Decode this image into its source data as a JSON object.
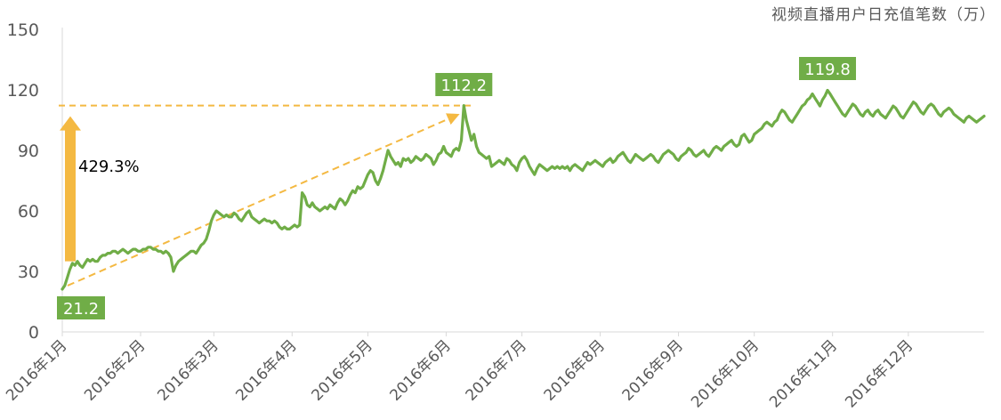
{
  "chart_data": {
    "type": "line",
    "unit_title": "视频直播用户日充值笔数（万）",
    "y_ticks": [
      0,
      30,
      60,
      90,
      120,
      150
    ],
    "ylim": [
      0,
      150
    ],
    "x_tick_labels": [
      "2016年1月",
      "2016年2月",
      "2016年3月",
      "2016年4月",
      "2016年5月",
      "2016年6月",
      "2016年7月",
      "2016年8月",
      "2016年9月",
      "2016年10月",
      "2016年11月",
      "2016年12月"
    ],
    "grid": false,
    "colors": {
      "line": "#70AD47",
      "label_bg": "#70AD47",
      "arrow": "#F4B942",
      "axis": "#D9D9D9",
      "text": "#595959"
    },
    "series": [
      {
        "x_start": "2016-01-01",
        "x_end": "2016-12-31",
        "values": [
          21.2,
          23,
          27,
          31,
          34,
          33,
          35,
          33,
          32,
          34,
          36,
          35,
          36,
          35,
          35,
          37,
          38,
          38,
          39,
          39,
          40,
          40,
          39,
          40,
          41,
          40,
          39,
          40,
          41,
          41,
          40,
          40,
          41,
          41,
          42,
          42,
          41,
          41,
          40,
          40,
          39,
          40,
          39,
          37,
          30,
          33,
          35,
          36,
          37,
          38,
          39,
          40,
          40,
          39,
          41,
          43,
          44,
          46,
          50,
          55,
          58,
          60,
          59,
          58,
          57,
          58,
          57,
          57,
          59,
          58,
          56,
          55,
          57,
          59,
          60,
          57,
          56,
          55,
          54,
          55,
          56,
          55,
          55,
          54,
          55,
          54,
          52,
          51,
          52,
          51,
          51,
          52,
          53,
          52,
          53,
          69,
          67,
          63,
          62,
          64,
          62,
          61,
          60,
          61,
          62,
          61,
          63,
          62,
          61,
          64,
          66,
          65,
          63,
          65,
          68,
          70,
          69,
          72,
          71,
          72,
          75,
          78,
          80,
          79,
          75,
          73,
          76,
          80,
          85,
          90,
          87,
          85,
          83,
          84,
          82,
          86,
          85,
          86,
          84,
          85,
          87,
          86,
          85,
          86,
          88,
          87,
          86,
          83,
          85,
          88,
          89,
          92,
          89,
          88,
          87,
          90,
          91,
          90,
          95,
          112.2,
          105,
          100,
          95,
          98,
          92,
          89,
          88,
          87,
          86,
          87,
          82,
          83,
          84,
          85,
          84,
          83,
          86,
          85,
          83,
          82,
          80,
          84,
          86,
          87,
          85,
          82,
          80,
          78,
          81,
          83,
          82,
          81,
          80,
          81,
          82,
          81,
          82,
          81,
          82,
          81,
          82,
          80,
          82,
          83,
          82,
          81,
          80,
          82,
          84,
          83,
          84,
          85,
          84,
          83,
          82,
          84,
          85,
          86,
          84,
          85,
          87,
          88,
          89,
          87,
          85,
          84,
          86,
          88,
          87,
          86,
          85,
          86,
          87,
          88,
          87,
          85,
          84,
          86,
          88,
          89,
          90,
          89,
          88,
          86,
          85,
          87,
          88,
          89,
          91,
          90,
          88,
          87,
          88,
          89,
          90,
          88,
          87,
          89,
          91,
          92,
          91,
          90,
          92,
          93,
          94,
          95,
          93,
          92,
          93,
          97,
          98,
          96,
          94,
          95,
          98,
          99,
          100,
          101,
          103,
          104,
          103,
          102,
          104,
          105,
          108,
          110,
          109,
          107,
          105,
          104,
          106,
          108,
          110,
          112,
          113,
          115,
          116,
          118,
          116,
          114,
          112,
          115,
          117,
          119.8,
          118,
          116,
          114,
          112,
          110,
          108,
          107,
          109,
          111,
          113,
          112,
          110,
          108,
          107,
          109,
          110,
          108,
          107,
          109,
          110,
          108,
          107,
          106,
          108,
          110,
          112,
          111,
          109,
          107,
          106,
          108,
          110,
          112,
          114,
          113,
          111,
          109,
          108,
          110,
          112,
          113,
          112,
          110,
          108,
          107,
          109,
          110,
          111,
          110,
          108,
          107,
          106,
          105,
          104,
          106,
          107,
          106,
          105,
          104,
          105,
          106,
          107
        ]
      }
    ],
    "annotations": {
      "start": {
        "value": 21.2,
        "label": "21.2"
      },
      "peak_mid": {
        "value": 112.2,
        "label": "112.2"
      },
      "peak_max": {
        "value": 119.8,
        "label": "119.8"
      },
      "growth": {
        "label": "429.3%"
      }
    }
  }
}
